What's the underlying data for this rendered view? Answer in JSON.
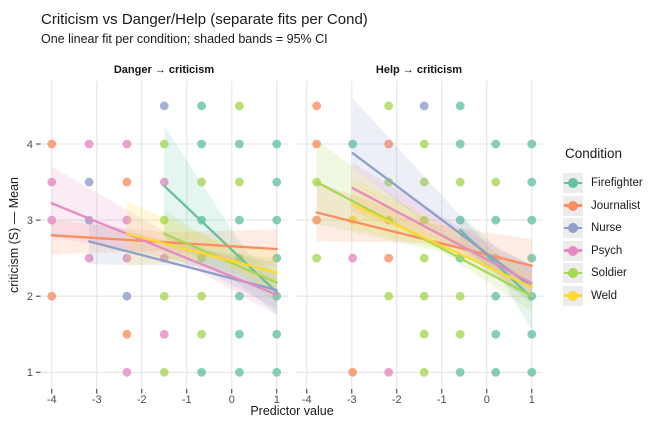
{
  "chart_data": {
    "type": "scatter",
    "title": "Criticism vs Danger/Help (separate fits per Cond)",
    "subtitle": "One linear fit per condition; shaded bands = 95% CI",
    "xlabel": "Predictor value",
    "ylabel": "criticism (S) — Mean",
    "x_ticks": [
      -4,
      -3,
      -2,
      -1,
      0,
      1
    ],
    "x_tick_labels": [
      "-4",
      "-3",
      "-2",
      "-1",
      "0",
      "1"
    ],
    "y_ticks": [
      1,
      2,
      3,
      4
    ],
    "y_tick_labels": [
      "1",
      "2",
      "3",
      "4"
    ],
    "xlim": [
      -4.25,
      1.25
    ],
    "ylim": [
      0.78,
      4.83
    ],
    "grid": "major-only",
    "legend_position": "right",
    "points_format": [
      "x",
      "y",
      "condition"
    ],
    "legend": {
      "title": "Condition",
      "items": [
        {
          "label": "Firefighter",
          "color": "#66C2A5"
        },
        {
          "label": "Journalist",
          "color": "#FC8D62"
        },
        {
          "label": "Nurse",
          "color": "#8DA0CB"
        },
        {
          "label": "Psych",
          "color": "#E78AC3"
        },
        {
          "label": "Soldier",
          "color": "#A6D854"
        },
        {
          "label": "Weld",
          "color": "#FFD92F"
        }
      ]
    },
    "facets": [
      {
        "label": "Danger → criticism",
        "points": [
          [
            -1.5,
            4.5,
            "Nurse"
          ],
          [
            -0.67,
            4.5,
            "Firefighter"
          ],
          [
            0.17,
            4.5,
            "Soldier"
          ],
          [
            -4,
            4,
            "Journalist"
          ],
          [
            -3.17,
            4,
            "Psych"
          ],
          [
            -2.33,
            4,
            "Psych"
          ],
          [
            -1.5,
            4,
            "Soldier"
          ],
          [
            -0.67,
            4,
            "Firefighter"
          ],
          [
            0.17,
            4,
            "Firefighter"
          ],
          [
            1,
            4,
            "Firefighter"
          ],
          [
            -4,
            3.5,
            "Psych"
          ],
          [
            -3.17,
            3.5,
            "Nurse"
          ],
          [
            -2.33,
            3.5,
            "Journalist"
          ],
          [
            -1.5,
            3.5,
            "Psych"
          ],
          [
            -0.67,
            3.5,
            "Soldier"
          ],
          [
            0.17,
            3.5,
            "Soldier"
          ],
          [
            1,
            3.5,
            "Firefighter"
          ],
          [
            -4,
            3,
            "Psych"
          ],
          [
            -3.17,
            3,
            "Nurse"
          ],
          [
            -2.33,
            3,
            "Psych"
          ],
          [
            -1.5,
            3,
            "Soldier"
          ],
          [
            -0.67,
            3,
            "Firefighter"
          ],
          [
            0.17,
            3,
            "Firefighter"
          ],
          [
            1,
            3,
            "Firefighter"
          ],
          [
            -3.17,
            2.5,
            "Psych"
          ],
          [
            -2.33,
            2.5,
            "Psych"
          ],
          [
            -1.5,
            2.5,
            "Psych"
          ],
          [
            -0.67,
            2.5,
            "Soldier"
          ],
          [
            0.17,
            2.5,
            "Soldier"
          ],
          [
            1,
            2.5,
            "Firefighter"
          ],
          [
            -4,
            2,
            "Journalist"
          ],
          [
            -2.33,
            2,
            "Nurse"
          ],
          [
            -1.5,
            2,
            "Soldier"
          ],
          [
            -0.67,
            2,
            "Soldier"
          ],
          [
            0.17,
            2,
            "Firefighter"
          ],
          [
            1,
            2,
            "Firefighter"
          ],
          [
            -2.33,
            1.5,
            "Journalist"
          ],
          [
            -1.5,
            1.5,
            "Psych"
          ],
          [
            -0.67,
            1.5,
            "Soldier"
          ],
          [
            0.17,
            1.5,
            "Firefighter"
          ],
          [
            1,
            1.5,
            "Firefighter"
          ],
          [
            -2.33,
            1,
            "Psych"
          ],
          [
            -1.5,
            1,
            "Soldier"
          ],
          [
            -0.67,
            1,
            "Firefighter"
          ],
          [
            0.17,
            1,
            "Firefighter"
          ],
          [
            1,
            1,
            "Firefighter"
          ]
        ],
        "fits": [
          {
            "cond": "Firefighter",
            "line": [
              [
                -1.5,
                3.45
              ],
              [
                1,
                2.05
              ]
            ],
            "ci": [
              [
                -1.5,
                2.78,
                4.24
              ],
              [
                0.3,
                2.1,
                2.6
              ],
              [
                1,
                1.76,
                2.29
              ]
            ]
          },
          {
            "cond": "Journalist",
            "line": [
              [
                -4,
                2.8
              ],
              [
                1,
                2.62
              ]
            ],
            "ci": [
              [
                -4,
                2.55,
                3.0
              ],
              [
                -1.4,
                2.6,
                2.84
              ],
              [
                1,
                2.38,
                2.88
              ]
            ]
          },
          {
            "cond": "Nurse",
            "line": [
              [
                -3.17,
                2.72
              ],
              [
                1,
                2.08
              ]
            ],
            "ci": [
              [
                -3.17,
                2.42,
                3.0
              ],
              [
                -0.8,
                2.4,
                2.62
              ],
              [
                1,
                1.83,
                2.45
              ]
            ]
          },
          {
            "cond": "Psych",
            "line": [
              [
                -4,
                3.22
              ],
              [
                1,
                2.02
              ]
            ],
            "ci": [
              [
                -4,
                2.78,
                3.7
              ],
              [
                -1.2,
                2.48,
                2.75
              ],
              [
                1,
                1.75,
                2.3
              ]
            ]
          },
          {
            "cond": "Soldier",
            "line": [
              [
                -1.5,
                2.82
              ],
              [
                1,
                2.18
              ]
            ],
            "ci": [
              [
                -1.5,
                2.5,
                3.12
              ],
              [
                0.1,
                2.3,
                2.55
              ],
              [
                1,
                1.9,
                2.5
              ]
            ]
          },
          {
            "cond": "Weld",
            "line": [
              [
                -2.33,
                2.82
              ],
              [
                1,
                2.31
              ]
            ],
            "ci": [
              [
                -2.33,
                2.4,
                3.25
              ],
              [
                -0.4,
                2.5,
                2.75
              ],
              [
                1,
                2.05,
                2.6
              ]
            ]
          }
        ]
      },
      {
        "label": "Help → criticism",
        "points": [
          [
            -3.78,
            4.5,
            "Journalist"
          ],
          [
            -2.18,
            4.5,
            "Soldier"
          ],
          [
            -1.39,
            4.5,
            "Nurse"
          ],
          [
            -0.59,
            4.5,
            "Firefighter"
          ],
          [
            -3.78,
            4,
            "Journalist"
          ],
          [
            -2.98,
            4,
            "Firefighter"
          ],
          [
            -2.18,
            4,
            "Journalist"
          ],
          [
            -1.39,
            4,
            "Soldier"
          ],
          [
            -0.59,
            4,
            "Firefighter"
          ],
          [
            0.2,
            4,
            "Firefighter"
          ],
          [
            1,
            4,
            "Firefighter"
          ],
          [
            -3.78,
            3.5,
            "Soldier"
          ],
          [
            -2.18,
            3.5,
            "Soldier"
          ],
          [
            -1.39,
            3.5,
            "Soldier"
          ],
          [
            -0.59,
            3.5,
            "Soldier"
          ],
          [
            0.2,
            3.5,
            "Soldier"
          ],
          [
            1,
            3.5,
            "Firefighter"
          ],
          [
            -3.78,
            3,
            "Journalist"
          ],
          [
            -2.98,
            3,
            "Weld"
          ],
          [
            -2.18,
            3,
            "Soldier"
          ],
          [
            -1.39,
            3,
            "Soldier"
          ],
          [
            -0.59,
            3,
            "Firefighter"
          ],
          [
            0.2,
            3,
            "Firefighter"
          ],
          [
            1,
            3,
            "Firefighter"
          ],
          [
            -3.78,
            2.5,
            "Soldier"
          ],
          [
            -2.98,
            2.5,
            "Psych"
          ],
          [
            -2.18,
            2.5,
            "Journalist"
          ],
          [
            -1.39,
            2.5,
            "Soldier"
          ],
          [
            -0.59,
            2.5,
            "Firefighter"
          ],
          [
            0.2,
            2.5,
            "Soldier"
          ],
          [
            1,
            2.5,
            "Firefighter"
          ],
          [
            -2.18,
            2,
            "Soldier"
          ],
          [
            -1.39,
            2,
            "Soldier"
          ],
          [
            -0.59,
            2,
            "Soldier"
          ],
          [
            0.2,
            2,
            "Firefighter"
          ],
          [
            1,
            2,
            "Firefighter"
          ],
          [
            -1.39,
            1.5,
            "Soldier"
          ],
          [
            -0.59,
            1.5,
            "Soldier"
          ],
          [
            0.2,
            1.5,
            "Firefighter"
          ],
          [
            1,
            1.5,
            "Firefighter"
          ],
          [
            -2.98,
            1,
            "Journalist"
          ],
          [
            -2.18,
            1,
            "Psych"
          ],
          [
            -1.39,
            1,
            "Soldier"
          ],
          [
            -0.59,
            1,
            "Firefighter"
          ],
          [
            0.2,
            1,
            "Firefighter"
          ],
          [
            1,
            1,
            "Firefighter"
          ]
        ],
        "fits": [
          {
            "cond": "Firefighter",
            "line": [
              [
                -0.59,
                2.87
              ],
              [
                1,
                1.98
              ]
            ],
            "ci": [
              [
                -0.59,
                2.68,
                3.08
              ],
              [
                0.3,
                2.25,
                2.6
              ],
              [
                1,
                1.55,
                2.42
              ]
            ]
          },
          {
            "cond": "Journalist",
            "line": [
              [
                -3.78,
                3.1
              ],
              [
                1,
                2.4
              ]
            ],
            "ci": [
              [
                -3.78,
                2.72,
                3.5
              ],
              [
                -1.2,
                2.7,
                2.95
              ],
              [
                1,
                2.1,
                2.75
              ]
            ]
          },
          {
            "cond": "Nurse",
            "line": [
              [
                -2.98,
                3.88
              ],
              [
                1,
                2.12
              ]
            ],
            "ci": [
              [
                -2.98,
                3.7,
                4.6
              ],
              [
                0.2,
                2.25,
                2.55
              ],
              [
                1,
                1.9,
                2.42
              ]
            ]
          },
          {
            "cond": "Psych",
            "line": [
              [
                -2.98,
                3.42
              ],
              [
                1,
                2.17
              ]
            ],
            "ci": [
              [
                -2.98,
                3.1,
                3.75
              ],
              [
                -0.5,
                2.62,
                2.88
              ],
              [
                1,
                1.95,
                2.4
              ]
            ]
          },
          {
            "cond": "Soldier",
            "line": [
              [
                -3.78,
                3.5
              ],
              [
                1,
                2.0
              ]
            ],
            "ci": [
              [
                -3.78,
                2.95,
                4.05
              ],
              [
                -1,
                2.58,
                2.85
              ],
              [
                1,
                1.8,
                2.2
              ]
            ]
          },
          {
            "cond": "Weld",
            "line": [
              [
                -2.98,
                3.2
              ],
              [
                1,
                2.12
              ]
            ],
            "ci": [
              [
                -2.98,
                2.88,
                3.55
              ],
              [
                -0.5,
                2.55,
                2.8
              ],
              [
                1,
                1.95,
                2.3
              ]
            ]
          }
        ]
      }
    ],
    "style": {
      "gridline_color": "#e4e4e4",
      "tick_color": "#333333",
      "tick_label_color": "#4d4d4d",
      "point_opacity": 0.8,
      "band_opacity": 0.17,
      "background": "#ffffff",
      "legend_key_color": "#ececec"
    }
  }
}
